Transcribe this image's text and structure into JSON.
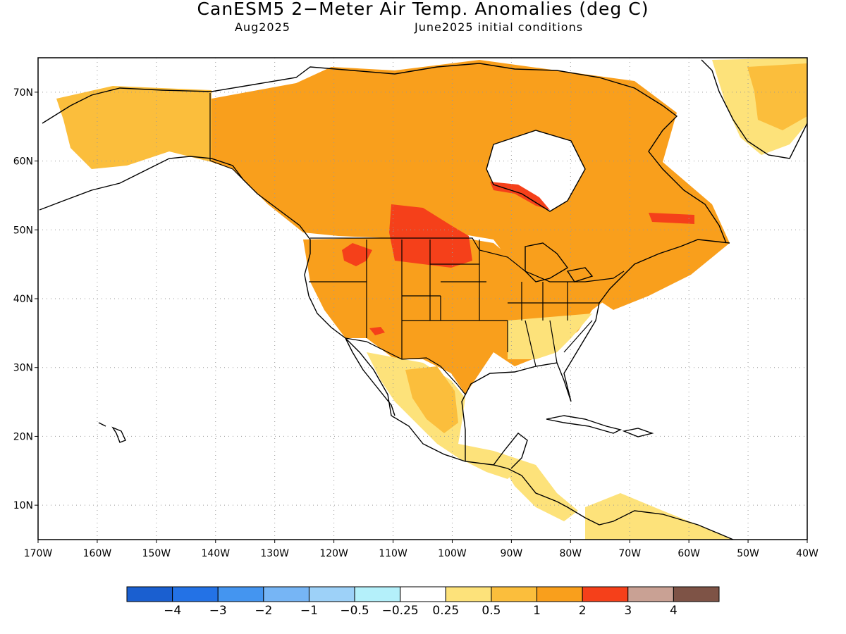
{
  "title": "CanESM5 2−Meter Air Temp. Anomalies (deg C)",
  "subtitle_left": "Aug2025",
  "subtitle_right": "June2025 initial conditions",
  "map": {
    "lon_range": [
      -170,
      -40
    ],
    "lat_range": [
      5,
      75
    ],
    "lat_ticks": [
      {
        "value": 10,
        "label": "10N"
      },
      {
        "value": 20,
        "label": "20N"
      },
      {
        "value": 30,
        "label": "30N"
      },
      {
        "value": 40,
        "label": "40N"
      },
      {
        "value": 50,
        "label": "50N"
      },
      {
        "value": 60,
        "label": "60N"
      },
      {
        "value": 70,
        "label": "70N"
      }
    ],
    "lon_ticks": [
      {
        "value": -170,
        "label": "170W"
      },
      {
        "value": -160,
        "label": "160W"
      },
      {
        "value": -150,
        "label": "150W"
      },
      {
        "value": -140,
        "label": "140W"
      },
      {
        "value": -130,
        "label": "130W"
      },
      {
        "value": -120,
        "label": "120W"
      },
      {
        "value": -110,
        "label": "110W"
      },
      {
        "value": -100,
        "label": "100W"
      },
      {
        "value": -90,
        "label": "90W"
      },
      {
        "value": -80,
        "label": "80W"
      },
      {
        "value": -70,
        "label": "70W"
      },
      {
        "value": -60,
        "label": "60W"
      },
      {
        "value": -50,
        "label": "50W"
      },
      {
        "value": -40,
        "label": "40W"
      }
    ],
    "grid": true
  },
  "colorbar": {
    "colors": [
      "#1a5fd0",
      "#2372e6",
      "#4495f0",
      "#76b5f5",
      "#9dd1f8",
      "#b4f0fa",
      "#ffffff",
      "#fde27a",
      "#fbbe3c",
      "#f99f1c",
      "#f5401a",
      "#c9a194",
      "#7e5346"
    ],
    "labels": [
      "−4",
      "−3",
      "−2",
      "−1",
      "−0.5",
      "−0.25",
      "0.25",
      "0.5",
      "1",
      "2",
      "3",
      "4"
    ]
  },
  "anomaly_colors": {
    "light": "#fde27a",
    "moderate": "#fbbe3c",
    "strong": "#f99f1c",
    "very_strong": "#f5401a"
  }
}
